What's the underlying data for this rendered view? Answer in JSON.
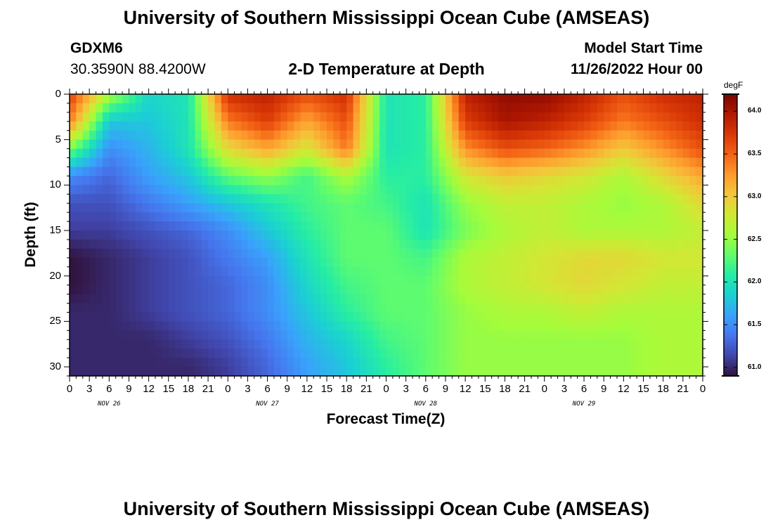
{
  "header": {
    "title": "University of Southern Mississippi Ocean Cube (AMSEAS)",
    "station_id": "GDXM6",
    "station_coords": "30.3590N  88.4200W",
    "subtitle": "2-D Temperature at Depth",
    "model_start_label": "Model Start Time",
    "model_start_value": "11/26/2022 Hour 00"
  },
  "footer": {
    "title_repeat": "University of Southern Mississippi Ocean Cube (AMSEAS)"
  },
  "chart_data": {
    "type": "heatmap",
    "title": "2-D Temperature at Depth",
    "xlabel": "Forecast Time(Z)",
    "ylabel": "Depth (ft)",
    "x_tick_labels": [
      "0",
      "3",
      "6",
      "9",
      "12",
      "15",
      "18",
      "21",
      "0",
      "3",
      "6",
      "9",
      "12",
      "15",
      "18",
      "21",
      "0",
      "3",
      "6",
      "9",
      "12",
      "15",
      "18",
      "21",
      "0",
      "3",
      "6",
      "9",
      "12",
      "15",
      "18",
      "21",
      "0"
    ],
    "x_date_labels": [
      "NOV 26",
      "NOV 27",
      "NOV 28",
      "NOV 29"
    ],
    "x_hours": [
      0,
      6,
      12,
      18,
      24,
      30,
      36,
      42,
      48,
      54,
      60,
      66,
      72,
      78,
      84,
      90,
      96
    ],
    "ylim": [
      0,
      31
    ],
    "y_ticks": [
      "0",
      "5",
      "10",
      "15",
      "20",
      "25",
      "30"
    ],
    "depths_ft": [
      0,
      3,
      6,
      9,
      12,
      15,
      18,
      21,
      24,
      27,
      30
    ],
    "colorbar": {
      "unit": "degF",
      "min": 60.9,
      "max": 64.2,
      "tick_labels": [
        "61.0",
        "61.5",
        "62.0",
        "62.5",
        "63.0",
        "63.5",
        "64.0"
      ],
      "colors": [
        "#30123b",
        "#4145ab",
        "#4675ed",
        "#39a2fc",
        "#1bcfd4",
        "#24eca6",
        "#61fc6c",
        "#a4fc3b",
        "#d1e834",
        "#f3c63a",
        "#fe9b2d",
        "#f36315",
        "#d93806",
        "#b11901",
        "#7a0403"
      ]
    },
    "temperature_degF": [
      [
        63.7,
        62.6,
        61.9,
        62.0,
        63.8,
        63.9,
        63.6,
        63.8,
        62.0,
        62.1,
        63.9,
        64.1,
        64.1,
        63.9,
        63.6,
        63.8,
        63.9
      ],
      [
        63.4,
        61.8,
        61.8,
        62.0,
        63.4,
        63.7,
        63.2,
        63.6,
        62.0,
        62.1,
        63.7,
        64.0,
        63.9,
        63.7,
        63.4,
        63.6,
        63.8
      ],
      [
        62.4,
        61.5,
        61.7,
        62.0,
        62.9,
        63.2,
        62.8,
        63.4,
        62.0,
        62.1,
        63.3,
        63.6,
        63.5,
        63.3,
        63.0,
        63.3,
        63.6
      ],
      [
        61.5,
        61.3,
        61.6,
        61.8,
        62.3,
        62.5,
        62.2,
        62.6,
        62.1,
        62.1,
        62.8,
        63.0,
        62.9,
        62.8,
        62.6,
        62.9,
        63.2
      ],
      [
        61.2,
        61.2,
        61.4,
        61.6,
        61.8,
        62.0,
        62.2,
        62.3,
        62.2,
        62.0,
        62.5,
        62.7,
        62.7,
        62.6,
        62.5,
        62.6,
        62.9
      ],
      [
        61.1,
        61.1,
        61.2,
        61.3,
        61.5,
        61.8,
        62.1,
        62.3,
        62.3,
        62.0,
        62.4,
        62.6,
        62.7,
        62.6,
        62.6,
        62.6,
        62.7
      ],
      [
        60.9,
        61.0,
        61.1,
        61.2,
        61.4,
        61.6,
        62.0,
        62.3,
        62.3,
        62.2,
        62.6,
        62.7,
        62.8,
        62.9,
        62.9,
        62.8,
        62.8
      ],
      [
        60.9,
        61.0,
        61.1,
        61.2,
        61.3,
        61.5,
        61.9,
        62.2,
        62.3,
        62.3,
        62.6,
        62.7,
        62.8,
        62.9,
        62.8,
        62.7,
        62.7
      ],
      [
        61.0,
        61.0,
        61.1,
        61.2,
        61.3,
        61.5,
        61.8,
        62.1,
        62.3,
        62.3,
        62.5,
        62.6,
        62.6,
        62.7,
        62.6,
        62.6,
        62.6
      ],
      [
        61.0,
        61.0,
        61.0,
        61.1,
        61.2,
        61.4,
        61.7,
        61.9,
        62.2,
        62.3,
        62.5,
        62.5,
        62.5,
        62.5,
        62.5,
        62.6,
        62.6
      ],
      [
        61.0,
        61.0,
        61.0,
        61.0,
        61.1,
        61.3,
        61.6,
        61.8,
        62.1,
        62.3,
        62.5,
        62.5,
        62.5,
        62.5,
        62.5,
        62.6,
        62.6
      ]
    ]
  }
}
